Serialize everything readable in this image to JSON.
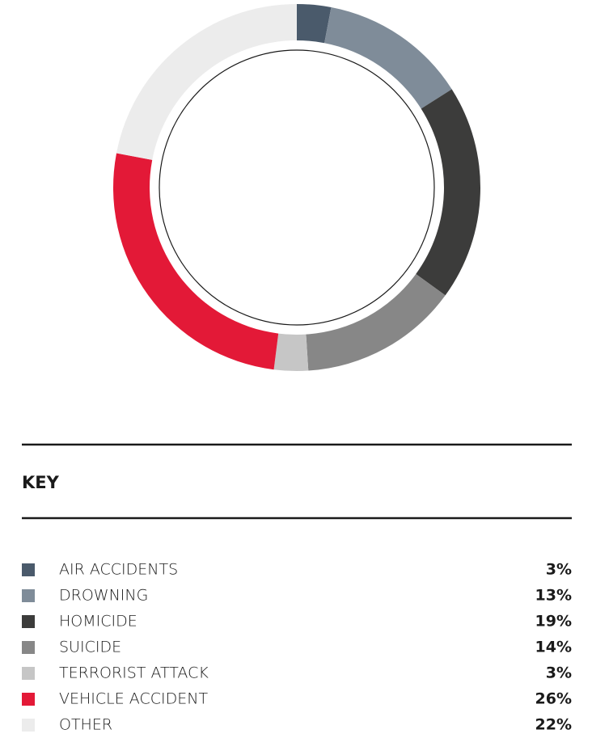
{
  "chart_data": {
    "type": "donut",
    "categories": [
      "AIR ACCIDENTS",
      "DROWNING",
      "HOMICIDE",
      "SUICIDE",
      "TERRORIST ATTACK",
      "VEHICLE ACCIDENT",
      "OTHER"
    ],
    "values": [
      3,
      13,
      19,
      14,
      3,
      26,
      22
    ],
    "value_labels": [
      "3%",
      "13%",
      "19%",
      "14%",
      "3%",
      "26%",
      "22%"
    ],
    "colors": [
      "#4a5a6b",
      "#7f8c99",
      "#3c3c3b",
      "#878787",
      "#c6c6c6",
      "#e31937",
      "#ececec"
    ],
    "legend_title": "KEY"
  }
}
